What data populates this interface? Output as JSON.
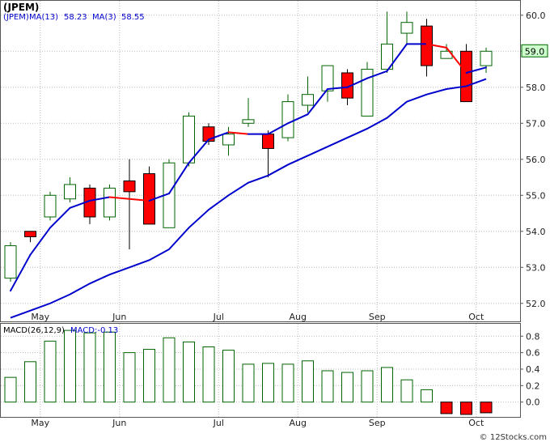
{
  "price_panel": {
    "title": "(JPEM)",
    "ma13_label": "MA(13)",
    "ma13_value": "58.23",
    "ma3_label": "MA(3)",
    "ma3_value": "58.55",
    "last_price": "59.0",
    "colors": {
      "up": "#006400",
      "down": "#ff0000",
      "ma13": "#0000cc",
      "ma3_up": "#0000cc",
      "ma3_down": "#ff0000",
      "last_box_bg": "#ccffcc"
    }
  },
  "macd_panel": {
    "label": "MACD(26,12,9)",
    "value_label": "MACD:-0.13"
  },
  "watermark": "© 12Stocks.com",
  "chart_data": [
    {
      "type": "candlestick",
      "title": "(JPEM)",
      "ylim": [
        51.5,
        60.4
      ],
      "yticks": [
        52.0,
        53.0,
        54.0,
        55.0,
        56.0,
        57.0,
        58.0,
        59.0,
        60.0
      ],
      "x_labels": [
        {
          "label": "May",
          "index": 1
        },
        {
          "label": "Jun",
          "index": 5
        },
        {
          "label": "Jul",
          "index": 10
        },
        {
          "label": "Aug",
          "index": 14
        },
        {
          "label": "Sep",
          "index": 18
        },
        {
          "label": "Oct",
          "index": 23
        }
      ],
      "candles": [
        {
          "o": 52.7,
          "h": 53.7,
          "l": 52.6,
          "c": 53.6
        },
        {
          "o": 54.0,
          "h": 54.0,
          "l": 53.7,
          "c": 53.85
        },
        {
          "o": 54.4,
          "h": 55.1,
          "l": 54.3,
          "c": 55.0
        },
        {
          "o": 54.9,
          "h": 55.5,
          "l": 54.8,
          "c": 55.3
        },
        {
          "o": 55.2,
          "h": 55.3,
          "l": 54.2,
          "c": 54.4
        },
        {
          "o": 54.4,
          "h": 55.3,
          "l": 54.3,
          "c": 55.2
        },
        {
          "o": 55.4,
          "h": 56.0,
          "l": 53.5,
          "c": 55.1
        },
        {
          "o": 55.6,
          "h": 55.8,
          "l": 54.2,
          "c": 54.2
        },
        {
          "o": 54.1,
          "h": 56.0,
          "l": 54.1,
          "c": 55.9
        },
        {
          "o": 55.9,
          "h": 57.3,
          "l": 55.8,
          "c": 57.2
        },
        {
          "o": 56.9,
          "h": 57.0,
          "l": 56.4,
          "c": 56.5
        },
        {
          "o": 56.4,
          "h": 56.9,
          "l": 56.1,
          "c": 56.7
        },
        {
          "o": 57.0,
          "h": 57.7,
          "l": 56.9,
          "c": 57.1
        },
        {
          "o": 56.7,
          "h": 56.8,
          "l": 55.5,
          "c": 56.3
        },
        {
          "o": 56.6,
          "h": 57.8,
          "l": 56.5,
          "c": 57.6
        },
        {
          "o": 57.5,
          "h": 58.3,
          "l": 57.3,
          "c": 57.8
        },
        {
          "o": 57.9,
          "h": 58.6,
          "l": 57.6,
          "c": 58.6
        },
        {
          "o": 58.4,
          "h": 58.5,
          "l": 57.5,
          "c": 57.7
        },
        {
          "o": 57.2,
          "h": 58.7,
          "l": 57.2,
          "c": 58.5
        },
        {
          "o": 58.5,
          "h": 60.1,
          "l": 58.4,
          "c": 59.2
        },
        {
          "o": 59.5,
          "h": 60.1,
          "l": 59.2,
          "c": 59.8
        },
        {
          "o": 59.7,
          "h": 59.9,
          "l": 58.3,
          "c": 58.6
        },
        {
          "o": 58.8,
          "h": 59.2,
          "l": 58.8,
          "c": 59.0
        },
        {
          "o": 59.0,
          "h": 59.2,
          "l": 57.6,
          "c": 57.6
        },
        {
          "o": 58.6,
          "h": 59.1,
          "l": 58.4,
          "c": 59.0
        }
      ],
      "ma13": [
        51.6,
        51.8,
        52.0,
        52.25,
        52.55,
        52.8,
        53.0,
        53.2,
        53.5,
        54.1,
        54.6,
        55.0,
        55.35,
        55.55,
        55.85,
        56.1,
        56.35,
        56.6,
        56.85,
        57.15,
        57.6,
        57.8,
        57.95,
        58.03,
        58.23
      ],
      "ma3": [
        52.35,
        53.35,
        54.1,
        54.65,
        54.85,
        54.95,
        54.9,
        54.85,
        55.05,
        55.9,
        56.55,
        56.75,
        56.7,
        56.7,
        57.0,
        57.25,
        57.95,
        58.0,
        58.25,
        58.45,
        59.2,
        59.2,
        59.1,
        58.4,
        58.55
      ]
    },
    {
      "type": "bar",
      "title": "MACD(26,12,9)",
      "ylim": [
        -0.18,
        0.95
      ],
      "yticks": [
        0.0,
        0.2,
        0.4,
        0.6,
        0.8
      ],
      "values": [
        0.3,
        0.49,
        0.74,
        0.87,
        0.84,
        0.85,
        0.6,
        0.64,
        0.78,
        0.73,
        0.67,
        0.63,
        0.46,
        0.47,
        0.46,
        0.5,
        0.38,
        0.36,
        0.38,
        0.42,
        0.27,
        0.15,
        -0.14,
        -0.15,
        -0.13
      ]
    }
  ]
}
